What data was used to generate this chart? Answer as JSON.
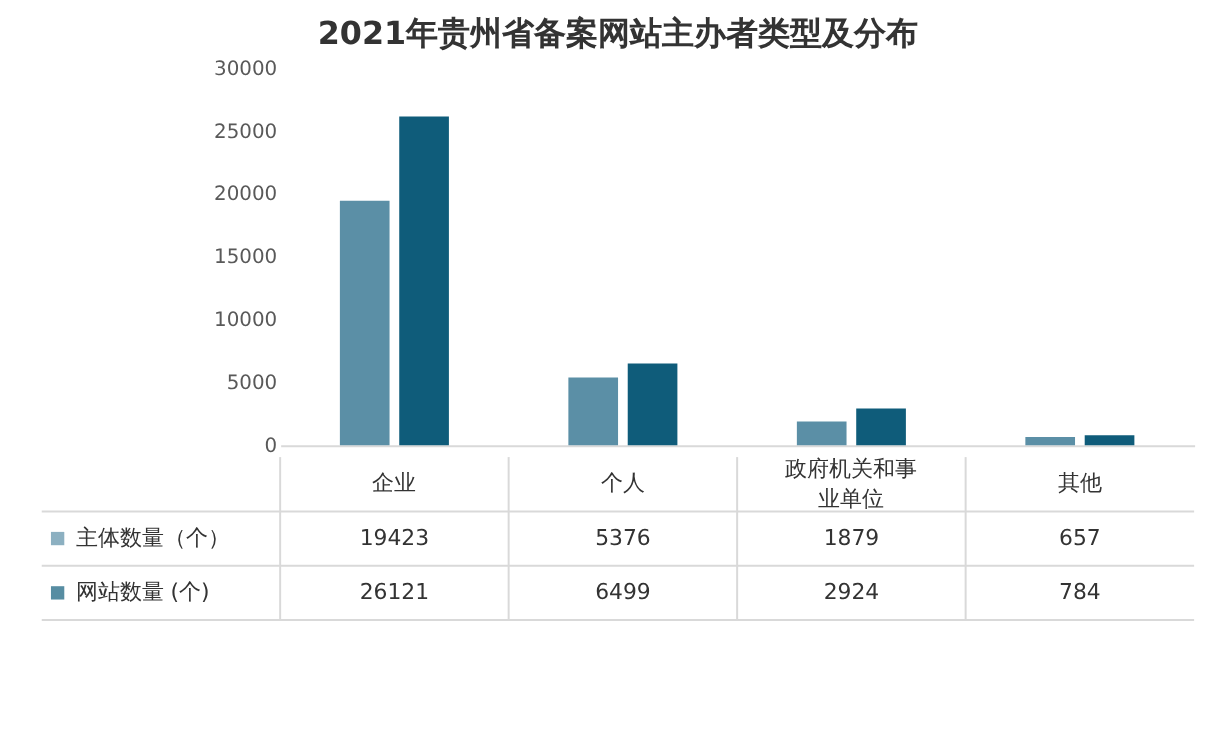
{
  "chart_data": {
    "type": "bar",
    "title": "2021年贵州省备案网站主办者类型及分布",
    "categories": [
      "企业",
      "个人",
      "政府机关和事业单位",
      "其他"
    ],
    "series": [
      {
        "name": "主体数量（个）",
        "color": "#5b8fa6",
        "values": [
          19423,
          5376,
          1879,
          657
        ]
      },
      {
        "name": "网站数量 (个)",
        "color": "#0f5c7a",
        "values": [
          26121,
          6499,
          2924,
          784
        ]
      }
    ],
    "ylim": [
      0,
      30000
    ],
    "yticks": [
      0,
      5000,
      10000,
      15000,
      20000,
      25000,
      30000
    ],
    "grid": false,
    "legend": "bottom",
    "data_labels": true
  }
}
